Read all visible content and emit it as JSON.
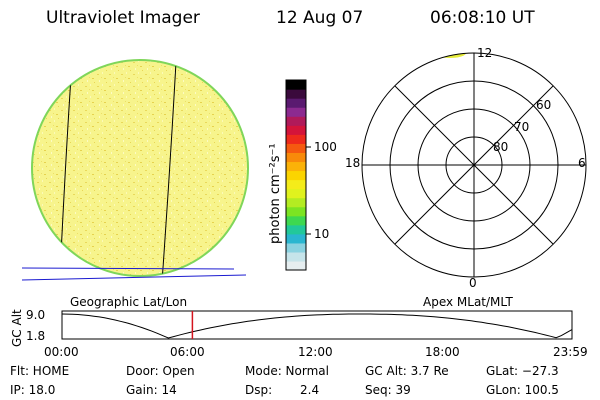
{
  "header": {
    "title": "Ultraviolet Imager",
    "date": "12 Aug 07",
    "time": "06:08:10 UT"
  },
  "colorbar": {
    "unit_label": "photon cm⁻²s⁻¹",
    "ticks": [
      "100",
      "10"
    ],
    "colors": [
      "#000000",
      "#3a0a3c",
      "#5a1a70",
      "#8c2a90",
      "#b01a5a",
      "#d4143a",
      "#ee2a1c",
      "#f55a10",
      "#f88a0a",
      "#fbb208",
      "#fbd400",
      "#f4ec1a",
      "#e0f21e",
      "#b4ec22",
      "#7ce422",
      "#3ed850",
      "#22c89a",
      "#2ab6d0",
      "#8ad2e0",
      "#c6e4ea",
      "#e6eef0"
    ]
  },
  "polar_plot": {
    "lat_labels": [
      "80",
      "70",
      "60"
    ],
    "mlt_labels": {
      "top": "12",
      "right": "6",
      "bottom": "0",
      "left": "18"
    }
  },
  "captions": {
    "left": "Geographic Lat/Lon",
    "right": "Apex MLat/MLT"
  },
  "timeline": {
    "ylabel": "GC Alt",
    "yticks": [
      "9.0",
      "1.8"
    ],
    "xticks": [
      "00:00",
      "06:00",
      "12:00",
      "18:00",
      "23:59"
    ],
    "marker_hours": 6.136
  },
  "info": {
    "flt": "Flt: HOME",
    "ip": "IP: 18.0",
    "door": "Door: Open",
    "gain": "Gain: 14",
    "mode": "Mode: Normal",
    "dsp_label": "Dsp:",
    "dsp_value": "2.4",
    "gcalt": "GC Alt: 3.7 Re",
    "seq": "Seq: 39",
    "glat": "GLat: −27.3",
    "glon": "GLon: 100.5"
  },
  "colors": {
    "disk_fill": "#f6f38a",
    "disk_edge": "#7fd65a",
    "meridian": "#000000",
    "horizon": "#1a1ad0",
    "marker": "#d4141e"
  }
}
